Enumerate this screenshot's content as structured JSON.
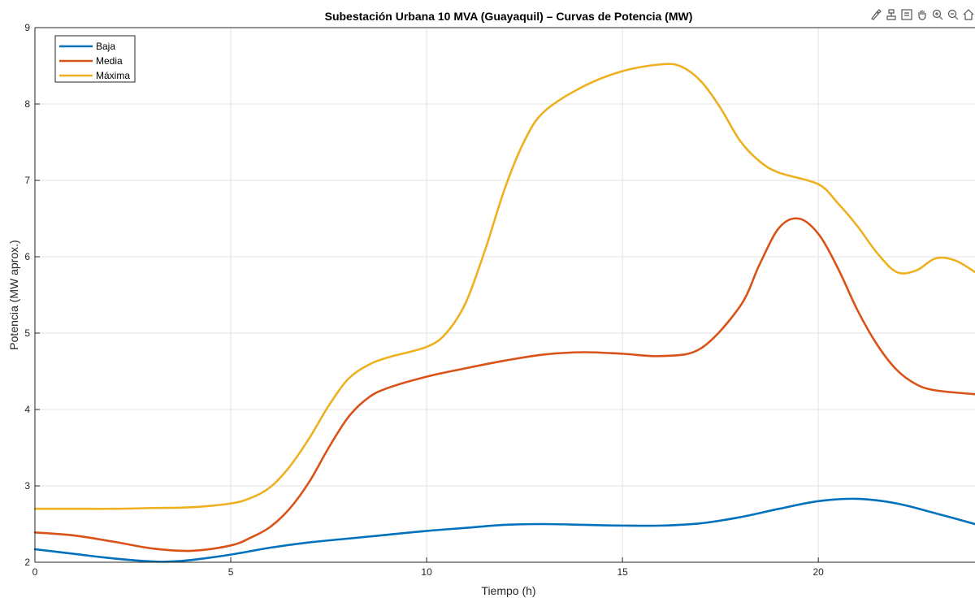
{
  "chart_data": {
    "type": "line",
    "title": "Subestación Urbana 10 MVA (Guayaquil) – Curvas de Potencia (MW)",
    "xlabel": "Tiempo (h)",
    "ylabel": "Potencia (MW aprox.)",
    "xlim": [
      0,
      24
    ],
    "ylim": [
      2,
      9
    ],
    "xticks": [
      0,
      5,
      10,
      15,
      20
    ],
    "yticks": [
      2,
      3,
      4,
      5,
      6,
      7,
      8,
      9
    ],
    "grid": true,
    "legend_position": "top-left",
    "series": [
      {
        "name": "Baja",
        "color": "#0072BD",
        "x": [
          0,
          1,
          2,
          3,
          3.5,
          4,
          5,
          6,
          7,
          8,
          9,
          10,
          11,
          12,
          13,
          14,
          15,
          16,
          17,
          18,
          19,
          20,
          21,
          22,
          23,
          24
        ],
        "y": [
          2.17,
          2.11,
          2.05,
          2.01,
          2.01,
          2.03,
          2.1,
          2.19,
          2.26,
          2.31,
          2.36,
          2.41,
          2.45,
          2.49,
          2.5,
          2.49,
          2.48,
          2.48,
          2.51,
          2.59,
          2.7,
          2.8,
          2.83,
          2.77,
          2.64,
          2.5
        ]
      },
      {
        "name": "Media",
        "color": "#D95319",
        "x": [
          0,
          1,
          2,
          3,
          4,
          5,
          5.5,
          6,
          6.5,
          7,
          7.5,
          8,
          8.5,
          9,
          10,
          11,
          12,
          13,
          14,
          15,
          16,
          17,
          18,
          18.5,
          19,
          19.5,
          20,
          20.5,
          21,
          21.5,
          22,
          22.5,
          23,
          24
        ],
        "y": [
          2.39,
          2.35,
          2.27,
          2.18,
          2.15,
          2.22,
          2.32,
          2.46,
          2.7,
          3.05,
          3.5,
          3.9,
          4.15,
          4.28,
          4.43,
          4.54,
          4.64,
          4.72,
          4.75,
          4.73,
          4.7,
          4.8,
          5.35,
          5.9,
          6.38,
          6.5,
          6.3,
          5.85,
          5.3,
          4.85,
          4.52,
          4.33,
          4.25,
          4.2
        ]
      },
      {
        "name": "Máxima",
        "color": "#EDB120",
        "x": [
          0,
          1,
          2,
          3,
          4,
          5,
          5.5,
          6,
          6.5,
          7,
          7.5,
          8,
          8.5,
          9,
          10,
          10.5,
          11,
          11.5,
          12,
          12.5,
          13,
          14,
          15,
          16,
          16.5,
          17,
          17.5,
          18,
          18.5,
          19,
          20,
          20.5,
          21,
          21.5,
          22,
          22.5,
          23,
          23.5,
          24
        ],
        "y": [
          2.7,
          2.7,
          2.7,
          2.71,
          2.72,
          2.77,
          2.84,
          2.98,
          3.25,
          3.62,
          4.05,
          4.4,
          4.58,
          4.68,
          4.82,
          5.0,
          5.4,
          6.1,
          6.9,
          7.52,
          7.9,
          8.23,
          8.43,
          8.52,
          8.49,
          8.3,
          7.95,
          7.52,
          7.25,
          7.1,
          6.95,
          6.7,
          6.4,
          6.05,
          5.8,
          5.82,
          5.98,
          5.95,
          5.8
        ]
      }
    ]
  }
}
